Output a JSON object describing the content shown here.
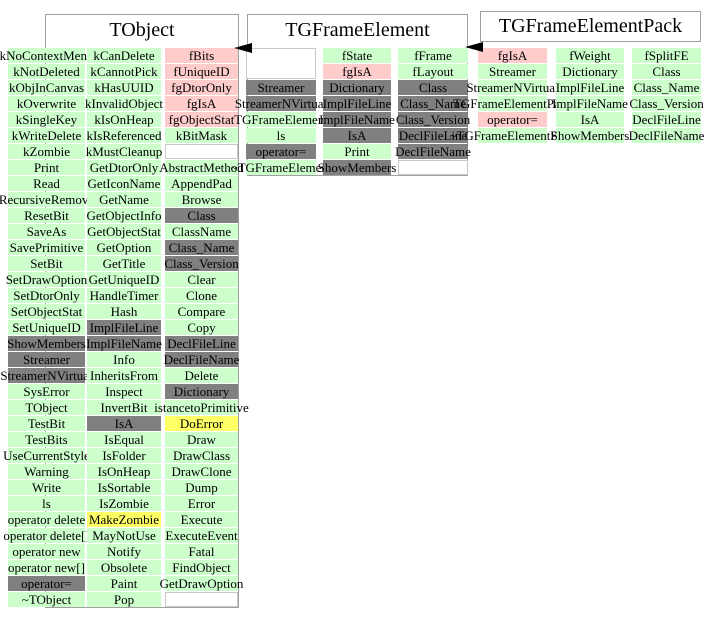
{
  "colors": {
    "green": "#ccffcc",
    "pink": "#ffcccc",
    "gray": "#808080",
    "yellow": "#ffff66",
    "box_border": "#a0a0a0",
    "empty_cell_border": "#c8c8c8",
    "arrow": "#000000",
    "text": "#000000",
    "background": "#ffffff"
  },
  "classes": [
    {
      "name": "TObject",
      "rows": [
        [
          [
            "kNoContextMenu",
            "g"
          ],
          [
            "kCanDelete",
            "g"
          ],
          [
            "fBits",
            "p"
          ]
        ],
        [
          [
            "kNotDeleted",
            "g"
          ],
          [
            "kCannotPick",
            "g"
          ],
          [
            "fUniqueID",
            "p"
          ]
        ],
        [
          [
            "kObjInCanvas",
            "g"
          ],
          [
            "kHasUUID",
            "g"
          ],
          [
            "fgDtorOnly",
            "p"
          ]
        ],
        [
          [
            "kOverwrite",
            "g"
          ],
          [
            "kInvalidObject",
            "g"
          ],
          [
            "fgIsA",
            "p"
          ]
        ],
        [
          [
            "kSingleKey",
            "g"
          ],
          [
            "kIsOnHeap",
            "g"
          ],
          [
            "fgObjectStat",
            "p"
          ]
        ],
        [
          [
            "kWriteDelete",
            "g"
          ],
          [
            "kIsReferenced",
            "g"
          ],
          [
            "kBitMask",
            "g"
          ]
        ],
        [
          [
            "kZombie",
            "g"
          ],
          [
            "kMustCleanup",
            "g"
          ],
          [
            "",
            "w"
          ]
        ],
        [
          [
            "Print",
            "g"
          ],
          [
            "GetDtorOnly",
            "g"
          ],
          [
            "AbstractMethod",
            "g"
          ]
        ],
        [
          [
            "Read",
            "g"
          ],
          [
            "GetIconName",
            "g"
          ],
          [
            "AppendPad",
            "g"
          ]
        ],
        [
          [
            "RecursiveRemove",
            "g"
          ],
          [
            "GetName",
            "g"
          ],
          [
            "Browse",
            "g"
          ]
        ],
        [
          [
            "ResetBit",
            "g"
          ],
          [
            "GetObjectInfo",
            "g"
          ],
          [
            "Class",
            "d"
          ]
        ],
        [
          [
            "SaveAs",
            "g"
          ],
          [
            "GetObjectStat",
            "g"
          ],
          [
            "ClassName",
            "g"
          ]
        ],
        [
          [
            "SavePrimitive",
            "g"
          ],
          [
            "GetOption",
            "g"
          ],
          [
            "Class_Name",
            "d"
          ]
        ],
        [
          [
            "SetBit",
            "g"
          ],
          [
            "GetTitle",
            "g"
          ],
          [
            "Class_Version",
            "d"
          ]
        ],
        [
          [
            "SetDrawOption",
            "g"
          ],
          [
            "GetUniqueID",
            "g"
          ],
          [
            "Clear",
            "g"
          ]
        ],
        [
          [
            "SetDtorOnly",
            "g"
          ],
          [
            "HandleTimer",
            "g"
          ],
          [
            "Clone",
            "g"
          ]
        ],
        [
          [
            "SetObjectStat",
            "g"
          ],
          [
            "Hash",
            "g"
          ],
          [
            "Compare",
            "g"
          ]
        ],
        [
          [
            "SetUniqueID",
            "g"
          ],
          [
            "ImplFileLine",
            "d"
          ],
          [
            "Copy",
            "g"
          ]
        ],
        [
          [
            "ShowMembers",
            "d"
          ],
          [
            "ImplFileName",
            "d"
          ],
          [
            "DeclFileLine",
            "d"
          ]
        ],
        [
          [
            "Streamer",
            "d"
          ],
          [
            "Info",
            "g"
          ],
          [
            "DeclFileName",
            "d"
          ]
        ],
        [
          [
            "StreamerNVirtual",
            "d"
          ],
          [
            "InheritsFrom",
            "g"
          ],
          [
            "Delete",
            "g"
          ]
        ],
        [
          [
            "SysError",
            "g"
          ],
          [
            "Inspect",
            "g"
          ],
          [
            "Dictionary",
            "d"
          ]
        ],
        [
          [
            "TObject",
            "g"
          ],
          [
            "InvertBit",
            "g"
          ],
          [
            "istancetoPrimitive",
            "g"
          ]
        ],
        [
          [
            "TestBit",
            "g"
          ],
          [
            "IsA",
            "d"
          ],
          [
            "DoError",
            "y"
          ]
        ],
        [
          [
            "TestBits",
            "g"
          ],
          [
            "IsEqual",
            "g"
          ],
          [
            "Draw",
            "g"
          ]
        ],
        [
          [
            "UseCurrentStyle",
            "g"
          ],
          [
            "IsFolder",
            "g"
          ],
          [
            "DrawClass",
            "g"
          ]
        ],
        [
          [
            "Warning",
            "g"
          ],
          [
            "IsOnHeap",
            "g"
          ],
          [
            "DrawClone",
            "g"
          ]
        ],
        [
          [
            "Write",
            "g"
          ],
          [
            "IsSortable",
            "g"
          ],
          [
            "Dump",
            "g"
          ]
        ],
        [
          [
            "ls",
            "g"
          ],
          [
            "IsZombie",
            "g"
          ],
          [
            "Error",
            "g"
          ]
        ],
        [
          [
            "operator delete",
            "g"
          ],
          [
            "MakeZombie",
            "y"
          ],
          [
            "Execute",
            "g"
          ]
        ],
        [
          [
            "operator delete[]",
            "g"
          ],
          [
            "MayNotUse",
            "g"
          ],
          [
            "ExecuteEvent",
            "g"
          ]
        ],
        [
          [
            "operator new",
            "g"
          ],
          [
            "Notify",
            "g"
          ],
          [
            "Fatal",
            "g"
          ]
        ],
        [
          [
            "operator new[]",
            "g"
          ],
          [
            "Obsolete",
            "g"
          ],
          [
            "FindObject",
            "g"
          ]
        ],
        [
          [
            "operator=",
            "d"
          ],
          [
            "Paint",
            "g"
          ],
          [
            "GetDrawOption",
            "g"
          ]
        ],
        [
          [
            "~TObject",
            "g"
          ],
          [
            "Pop",
            "g"
          ],
          [
            "",
            "w"
          ]
        ]
      ]
    },
    {
      "name": "TGFrameElement",
      "rows": [
        [
          [
            "",
            "w2"
          ],
          [
            "fState",
            "g"
          ],
          [
            "fFrame",
            "g"
          ]
        ],
        [
          null,
          [
            "fgIsA",
            "p"
          ],
          [
            "fLayout",
            "g"
          ]
        ],
        [
          [
            "Streamer",
            "d"
          ],
          [
            "Dictionary",
            "d"
          ],
          [
            "Class",
            "d"
          ]
        ],
        [
          [
            "StreamerNVirtual",
            "d"
          ],
          [
            "ImplFileLine",
            "d"
          ],
          [
            "Class_Name",
            "d"
          ]
        ],
        [
          [
            "TGFrameElement",
            "g"
          ],
          [
            "ImplFileName",
            "d"
          ],
          [
            "Class_Version",
            "d"
          ]
        ],
        [
          [
            "ls",
            "g"
          ],
          [
            "IsA",
            "d"
          ],
          [
            "DeclFileLine",
            "d"
          ]
        ],
        [
          [
            "operator=",
            "d"
          ],
          [
            "Print",
            "g"
          ],
          [
            "DeclFileName",
            "d"
          ]
        ],
        [
          [
            "~TGFrameElement",
            "g"
          ],
          [
            "ShowMembers",
            "d"
          ],
          [
            "",
            "w"
          ]
        ]
      ]
    },
    {
      "name": "TGFrameElementPack",
      "rows": [
        [
          [
            "fgIsA",
            "p"
          ],
          [
            "fWeight",
            "g"
          ],
          [
            "fSplitFE",
            "g"
          ]
        ],
        [
          [
            "Streamer",
            "g"
          ],
          [
            "Dictionary",
            "g"
          ],
          [
            "Class",
            "g"
          ]
        ],
        [
          [
            "StreamerNVirtual",
            "g"
          ],
          [
            "ImplFileLine",
            "g"
          ],
          [
            "Class_Name",
            "g"
          ]
        ],
        [
          [
            "TGFrameElementPack",
            "g"
          ],
          [
            "ImplFileName",
            "g"
          ],
          [
            "Class_Version",
            "g"
          ]
        ],
        [
          [
            "operator=",
            "p"
          ],
          [
            "IsA",
            "g"
          ],
          [
            "DeclFileLine",
            "g"
          ]
        ],
        [
          [
            "~TGFrameElementPack",
            "g"
          ],
          [
            "ShowMembers",
            "g"
          ],
          [
            "DeclFileName",
            "g"
          ]
        ]
      ]
    }
  ],
  "arrows": [
    {
      "label": "inheritance-arrow-tgframeelement-to-tobject",
      "direction": "left"
    },
    {
      "label": "inheritance-arrow-tgframeelementpack-to-tgframeelement",
      "direction": "left"
    }
  ]
}
